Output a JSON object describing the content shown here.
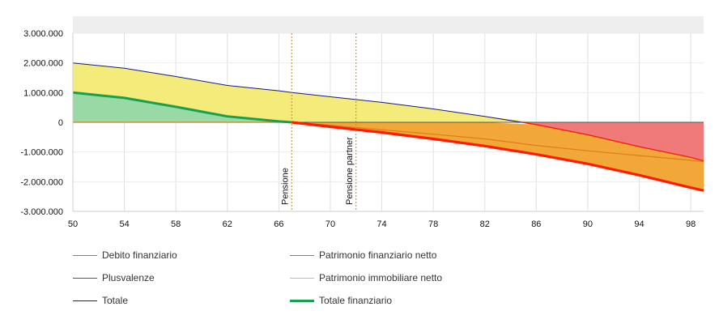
{
  "chart_data": {
    "type": "area",
    "x_ticks": [
      "50",
      "54",
      "58",
      "62",
      "66",
      "70",
      "74",
      "78",
      "82",
      "86",
      "90",
      "94",
      "98"
    ],
    "y_ticks": [
      "3.000.000",
      "2.000.000",
      "1.000.000",
      "0",
      "-1.000.000",
      "-2.000.000",
      "-3.000.000"
    ],
    "xlim": [
      50,
      99
    ],
    "ylim": [
      -3000000,
      3000000
    ],
    "grid": true,
    "legend_placement": "bottom",
    "annotations": [
      {
        "label": "Pensione",
        "x": 67
      },
      {
        "label": "Pensione partner",
        "x": 72
      }
    ],
    "series": [
      {
        "name": "Debito finanziario",
        "color": "#e07b1a",
        "x": [
          50,
          54,
          58,
          62,
          66,
          67,
          70,
          74,
          78,
          82,
          86,
          90,
          94,
          98,
          99
        ],
        "y": [
          0,
          0,
          0,
          0,
          0,
          0,
          -100000,
          -250000,
          -400000,
          -560000,
          -780000,
          -960000,
          -1120000,
          -1280000,
          -1330000
        ]
      },
      {
        "name": "Patrimonio finanziario netto",
        "color": "#8ed4a0",
        "x": [
          50,
          54,
          58,
          62,
          66,
          67,
          70,
          74,
          78,
          82,
          86,
          90,
          94,
          98,
          99
        ],
        "y": [
          1000000,
          820000,
          600000,
          360000,
          100000,
          0,
          0,
          0,
          0,
          0,
          0,
          0,
          0,
          0,
          0
        ]
      },
      {
        "name": "Plusvalenze",
        "color": "#e06060",
        "x": [
          50,
          54,
          58,
          62,
          66,
          67,
          70,
          74,
          78,
          82,
          86,
          90,
          94,
          98,
          99
        ],
        "y": [
          0,
          0,
          0,
          0,
          0,
          0,
          0,
          0,
          0,
          0,
          0,
          -350000,
          -750000,
          -1150000,
          -1300000
        ]
      },
      {
        "name": "Patrimonio immobiliare netto",
        "color": "#f0e35a",
        "x": [
          50,
          54,
          58,
          62,
          66,
          67,
          70,
          74,
          78,
          82,
          86,
          90,
          94,
          98,
          99
        ],
        "y": [
          1000000,
          1000000,
          1000000,
          1000000,
          1000000,
          1000000,
          1000000,
          1000000,
          1000000,
          1000000,
          1000000,
          1000000,
          1000000,
          1000000,
          1000000
        ]
      },
      {
        "name": "Totale",
        "color": "#1a1a80",
        "x": [
          50,
          54,
          58,
          62,
          66,
          67,
          70,
          74,
          78,
          82,
          86,
          90,
          94,
          98,
          99
        ],
        "y": [
          2000000,
          1820000,
          1540000,
          1240000,
          1060000,
          1000000,
          860000,
          670000,
          450000,
          200000,
          -80000,
          -420000,
          -820000,
          -1180000,
          -1300000
        ]
      },
      {
        "name": "Totale finanziario",
        "color": "#18a050",
        "x": [
          50,
          54,
          58,
          62,
          66,
          67,
          70,
          74,
          78,
          82,
          86,
          90,
          94,
          98,
          99
        ],
        "y": [
          1000000,
          820000,
          520000,
          200000,
          30000,
          0,
          -150000,
          -340000,
          -560000,
          -800000,
          -1080000,
          -1400000,
          -1780000,
          -2200000,
          -2300000
        ]
      }
    ]
  },
  "legend": {
    "items": [
      {
        "label": "Debito finanziario",
        "color": "#b87333",
        "weight": 1
      },
      {
        "label": "Patrimonio finanziario netto",
        "color": "#38b050",
        "weight": 1
      },
      {
        "label": "Plusvalenze",
        "color": "#1a7a3a",
        "weight": 1
      },
      {
        "label": "Patrimonio immobiliare netto",
        "color": "#e8c800",
        "weight": 1
      },
      {
        "label": "Totale",
        "color": "#1a1a80",
        "weight": 1
      },
      {
        "label": "Totale finanziario",
        "color": "#18a050",
        "weight": 3
      }
    ]
  },
  "colors": {
    "fill_yellow": "#f4ec7a",
    "fill_green": "#98d9a6",
    "fill_orange": "#f2a838",
    "fill_red": "#f07a7a",
    "line_red": "#ff1a00",
    "line_green": "#18a050",
    "line_blue": "#1a1a80",
    "line_orange": "#e07b1a",
    "marker": "#c08a2a",
    "grid": "#e0e0e0",
    "top_band": "#eeeeee"
  }
}
